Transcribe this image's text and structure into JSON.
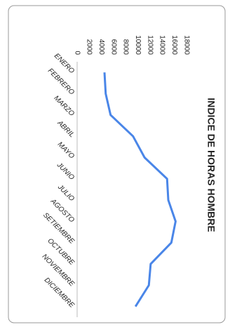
{
  "chart_data": {
    "type": "line",
    "title": "INDICE DE HORAS HOMBRE",
    "categories": [
      "ENERO",
      "FEBRERO",
      "MARZO",
      "ABRIL",
      "MAYO",
      "JUNIO",
      "JULIO",
      "AGOSTO",
      "SETIEMBRE",
      "OCTUBRE",
      "NOVIEMBRE",
      "DICIEMBRE"
    ],
    "series": [
      {
        "name": "INDICE DE HORAS HOMBRE",
        "color": "#4a86e8",
        "values": [
          4500,
          4700,
          5500,
          9200,
          11100,
          14800,
          15000,
          16200,
          15500,
          12100,
          11800,
          9600
        ]
      }
    ],
    "ylim": [
      0,
      18000
    ],
    "yticks": [
      0,
      2000,
      4000,
      6000,
      8000,
      10000,
      12000,
      14000,
      16000,
      18000
    ],
    "grid": false
  }
}
